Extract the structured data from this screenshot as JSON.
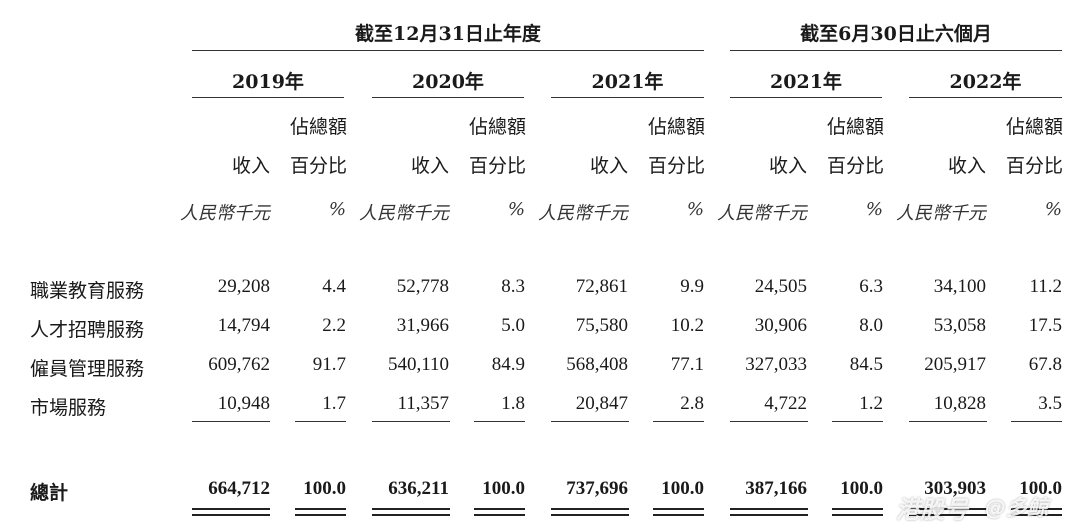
{
  "headers": {
    "year_end_group": "截至12月31日止年度",
    "six_month_group": "截至6月30日止六個月"
  },
  "years": [
    "2019年",
    "2020年",
    "2021年",
    "2021年",
    "2022年"
  ],
  "subheaders": {
    "revenue": "收入",
    "pct_line1": "佔總額",
    "pct_line2": "百分比",
    "unit_revenue": "人民幣千元",
    "unit_pct": "%"
  },
  "rows": [
    {
      "label": "職業教育服務",
      "values": [
        "29,208",
        "4.4",
        "52,778",
        "8.3",
        "72,861",
        "9.9",
        "24,505",
        "6.3",
        "34,100",
        "11.2"
      ]
    },
    {
      "label": "人才招聘服務",
      "values": [
        "14,794",
        "2.2",
        "31,966",
        "5.0",
        "75,580",
        "10.2",
        "30,906",
        "8.0",
        "53,058",
        "17.5"
      ]
    },
    {
      "label": "僱員管理服務",
      "values": [
        "609,762",
        "91.7",
        "540,110",
        "84.9",
        "568,408",
        "77.1",
        "327,033",
        "84.5",
        "205,917",
        "67.8"
      ]
    },
    {
      "label": "市場服務",
      "values": [
        "10,948",
        "1.7",
        "11,357",
        "1.8",
        "20,847",
        "2.8",
        "4,722",
        "1.2",
        "10,828",
        "3.5"
      ]
    }
  ],
  "total": {
    "label": "總計",
    "values": [
      "664,712",
      "100.0",
      "636,211",
      "100.0",
      "737,696",
      "100.0",
      "387,166",
      "100.0",
      "303,903",
      "100.0"
    ]
  },
  "watermark": {
    "left": "港股号",
    "right": "@多鲸"
  }
}
